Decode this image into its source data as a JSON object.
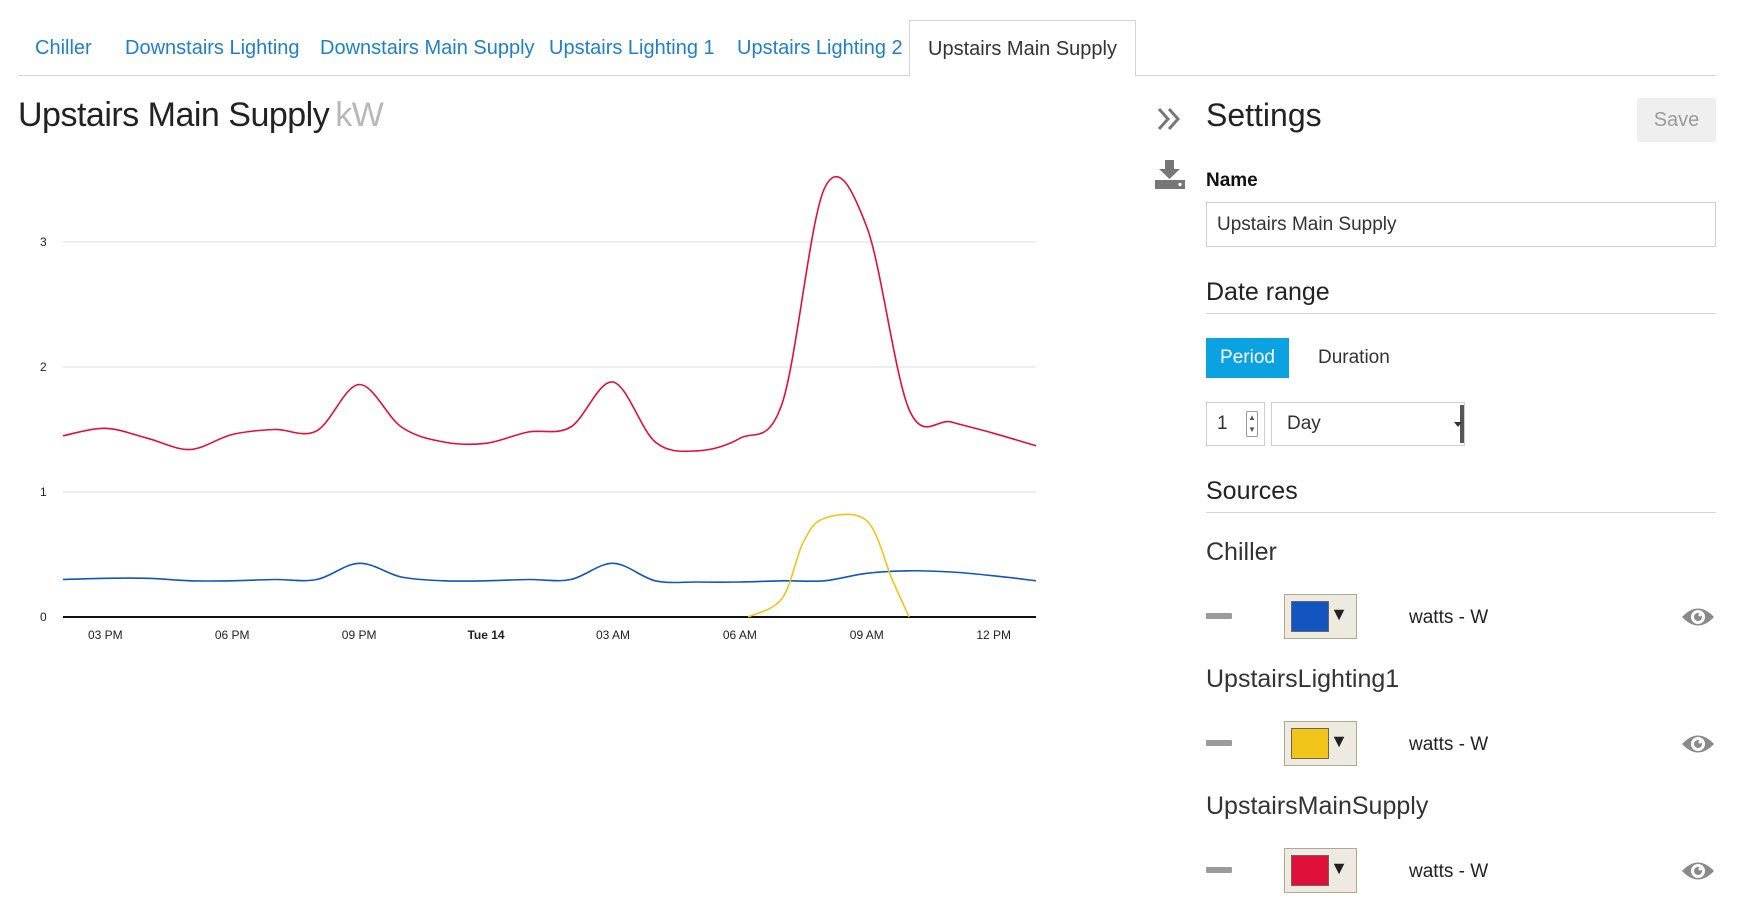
{
  "tabs": [
    {
      "label": "Chiller",
      "active": false
    },
    {
      "label": "Downstairs Lighting",
      "active": false
    },
    {
      "label": "Downstairs Main Supply",
      "active": false
    },
    {
      "label": "Upstairs Lighting 1",
      "active": false
    },
    {
      "label": "Upstairs Lighting 2",
      "active": false
    },
    {
      "label": "Upstairs Main Supply",
      "active": true
    }
  ],
  "chart_header": {
    "title": "Upstairs Main Supply",
    "unit": "kW"
  },
  "chart_data": {
    "type": "line",
    "ylim": [
      0,
      3.5
    ],
    "yticks": [
      "0",
      "1",
      "2",
      "3"
    ],
    "grid": true,
    "x_range_hours": [
      0,
      23
    ],
    "xticks": [
      {
        "label": "03 PM",
        "h": 1,
        "bold": false
      },
      {
        "label": "06 PM",
        "h": 4,
        "bold": false
      },
      {
        "label": "09 PM",
        "h": 7,
        "bold": false
      },
      {
        "label": "Tue 14",
        "h": 10,
        "bold": true
      },
      {
        "label": "03 AM",
        "h": 13,
        "bold": false
      },
      {
        "label": "06 AM",
        "h": 16,
        "bold": false
      },
      {
        "label": "09 AM",
        "h": 19,
        "bold": false
      },
      {
        "label": "12 PM",
        "h": 22,
        "bold": false
      }
    ],
    "series": [
      {
        "name": "UpstairsMainSupply",
        "color": "#e0103a",
        "x": [
          0,
          1,
          2,
          3,
          4,
          5,
          6,
          7,
          8,
          9,
          10,
          11,
          12,
          13,
          14,
          15,
          16,
          17,
          18,
          19,
          20,
          21,
          22,
          23
        ],
        "values": [
          1.45,
          1.51,
          1.43,
          1.34,
          1.46,
          1.5,
          1.49,
          1.86,
          1.52,
          1.4,
          1.39,
          1.48,
          1.52,
          1.88,
          1.4,
          1.33,
          1.43,
          1.71,
          3.43,
          3.12,
          1.66,
          1.56,
          1.47,
          1.37
        ]
      },
      {
        "name": "Chiller",
        "color": "#1254c0",
        "x": [
          0,
          1,
          2,
          3,
          4,
          5,
          6,
          7,
          8,
          9,
          10,
          11,
          12,
          13,
          14,
          15,
          16,
          17,
          18,
          19,
          20,
          21,
          22,
          23
        ],
        "values": [
          0.3,
          0.31,
          0.31,
          0.29,
          0.29,
          0.3,
          0.3,
          0.43,
          0.32,
          0.29,
          0.29,
          0.3,
          0.3,
          0.43,
          0.29,
          0.28,
          0.28,
          0.29,
          0.29,
          0.35,
          0.37,
          0.36,
          0.33,
          0.29
        ]
      },
      {
        "name": "UpstairsLighting1",
        "color": "#f0c419",
        "x": [
          16.2,
          17,
          17.5,
          18,
          19,
          19.6,
          20
        ],
        "values": [
          0,
          0.15,
          0.6,
          0.79,
          0.77,
          0.3,
          0
        ]
      }
    ]
  },
  "settings": {
    "title": "Settings",
    "save_label": "Save",
    "name_label": "Name",
    "name_value": "Upstairs Main Supply",
    "date_range_label": "Date range",
    "period_label": "Period",
    "duration_label": "Duration",
    "period_count": "1",
    "period_unit": "Day",
    "sources_label": "Sources"
  },
  "sources": [
    {
      "name": "Chiller",
      "color": "#1254c0",
      "unit": "watts - W"
    },
    {
      "name": "UpstairsLighting1",
      "color": "#f0c419",
      "unit": "watts - W"
    },
    {
      "name": "UpstairsMainSupply",
      "color": "#e0103a",
      "unit": "watts - W"
    }
  ],
  "icons": {
    "collapse": "double-chevron-right-icon",
    "download": "download-icon",
    "visibility": "eye-icon",
    "remove": "minus-icon"
  }
}
